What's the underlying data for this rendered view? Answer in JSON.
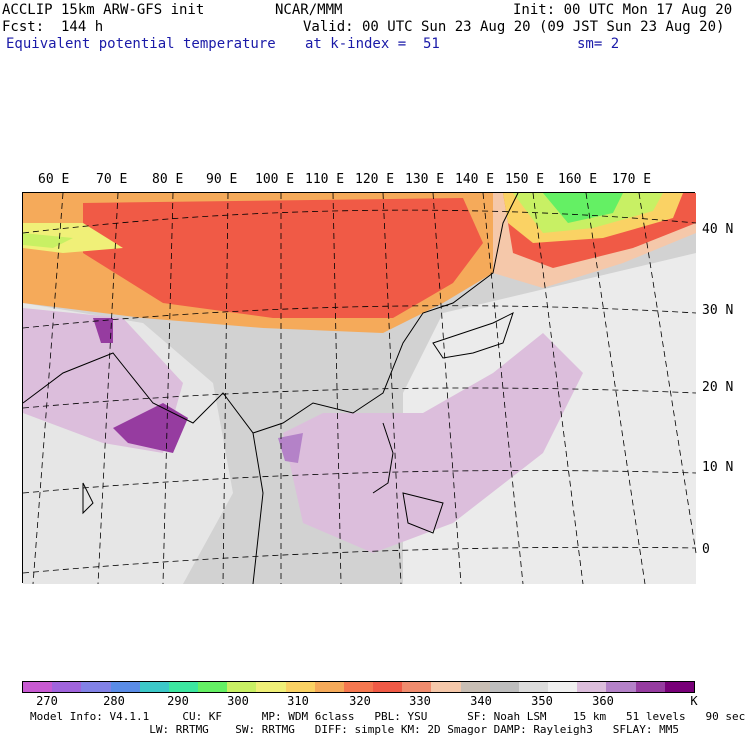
{
  "header": {
    "model_title": "ACCLIP 15km ARW-GFS init",
    "org": "NCAR/MMM",
    "init": "Init: 00 UTC Mon 17 Aug 20",
    "fcst": "Fcst:  144 h",
    "valid": "Valid: 00 UTC Sun 23 Aug 20 (09 JST Sun 23 Aug 20)",
    "field": "Equivalent potential temperature",
    "level": "at k-index =  51",
    "smooth": "sm= 2"
  },
  "axes": {
    "lon_labels": [
      "60 E",
      "70 E",
      "80 E",
      "90 E",
      "100 E",
      "110 E",
      "120 E",
      "130 E",
      "140 E",
      "150 E",
      "160 E",
      "170 E"
    ],
    "lat_labels": [
      "40 N",
      "30 N",
      "20 N",
      "10 N",
      "0"
    ]
  },
  "colorbar": {
    "colors": [
      "#c85ad2",
      "#a064dc",
      "#8282e6",
      "#5a8ce6",
      "#3cc8c8",
      "#3ce6a0",
      "#64f064",
      "#c8f064",
      "#f0f078",
      "#fad264",
      "#f5aa5a",
      "#f57850",
      "#f05a46",
      "#f08c6e",
      "#f5c8aa",
      "#c8beb4",
      "#bebebe",
      "#dcdcdc",
      "#f0f0f0",
      "#dcbedc",
      "#b482c8",
      "#963ca0",
      "#780078"
    ],
    "labels": [
      "270",
      "280",
      "290",
      "300",
      "310",
      "320",
      "330",
      "340",
      "350",
      "360",
      "K"
    ]
  },
  "model_info": {
    "line1": "Model Info: V4.1.1     CU: KF      MP: WDM 6class   PBL: YSU      SF: Noah LSM    15 km   51 levels   90 sec",
    "line2": "                  LW: RRTMG    SW: RRTMG   DIFF: simple KM: 2D Smagor DAMP: Rayleigh3   SFLAY: MM5"
  }
}
